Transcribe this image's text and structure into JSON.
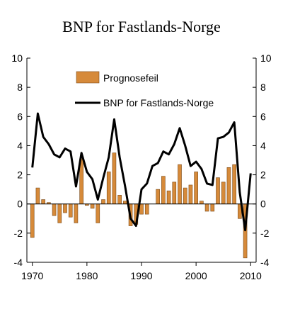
{
  "chart_data": {
    "type": "bar+line",
    "title": "BNP for Fastlands-Norge",
    "xlim": [
      1969,
      2011
    ],
    "ylim": [
      -4,
      10
    ],
    "y_ticks": [
      -4,
      -2,
      0,
      2,
      4,
      6,
      8,
      10
    ],
    "x_ticks": [
      1970,
      1980,
      1990,
      2000,
      2010
    ],
    "y_axes": "left and right, same scale",
    "grid": false,
    "legend_position": "top-center",
    "colors": {
      "bar": "#D68A3A",
      "bar_stroke": "#7a4a18",
      "line": "#000000"
    },
    "series": [
      {
        "name": "Prognosefeil",
        "kind": "bar",
        "x": [
          1970,
          1971,
          1972,
          1973,
          1974,
          1975,
          1976,
          1977,
          1978,
          1979,
          1980,
          1981,
          1982,
          1983,
          1984,
          1985,
          1986,
          1987,
          1988,
          1989,
          1990,
          1991,
          1992,
          1993,
          1994,
          1995,
          1996,
          1997,
          1998,
          1999,
          2000,
          2001,
          2002,
          2003,
          2004,
          2005,
          2006,
          2007,
          2008,
          2009
        ],
        "values": [
          -2.3,
          1.1,
          0.3,
          0.1,
          -0.8,
          -1.3,
          -0.6,
          -0.9,
          -1.3,
          3.1,
          -0.1,
          -0.3,
          -1.3,
          0.3,
          2.2,
          3.5,
          0.6,
          0.2,
          -1.5,
          -1.4,
          -0.7,
          -0.7,
          0.0,
          1.0,
          1.9,
          0.9,
          1.5,
          2.7,
          1.1,
          1.3,
          2.2,
          0.2,
          -0.5,
          -0.5,
          1.8,
          1.5,
          2.5,
          2.7,
          -1.0,
          -3.7
        ]
      },
      {
        "name": "BNP for Fastlands-Norge",
        "kind": "line",
        "x": [
          1970,
          1971,
          1972,
          1973,
          1974,
          1975,
          1976,
          1977,
          1978,
          1979,
          1980,
          1981,
          1982,
          1983,
          1984,
          1985,
          1986,
          1987,
          1988,
          1989,
          1990,
          1991,
          1992,
          1993,
          1994,
          1995,
          1996,
          1997,
          1998,
          1999,
          2000,
          2001,
          2002,
          2003,
          2004,
          2005,
          2006,
          2007,
          2008,
          2009,
          2010
        ],
        "values": [
          2.5,
          6.2,
          4.6,
          4.1,
          3.4,
          3.2,
          3.8,
          3.6,
          1.2,
          3.5,
          2.2,
          1.7,
          0.3,
          1.8,
          3.2,
          5.8,
          3.2,
          1.2,
          -1.0,
          -1.5,
          1.0,
          1.4,
          2.6,
          2.8,
          3.6,
          3.4,
          4.1,
          5.2,
          4.0,
          2.6,
          2.9,
          2.4,
          1.4,
          1.3,
          4.5,
          4.6,
          4.9,
          5.6,
          0.8,
          -1.8,
          2.1
        ]
      }
    ]
  }
}
